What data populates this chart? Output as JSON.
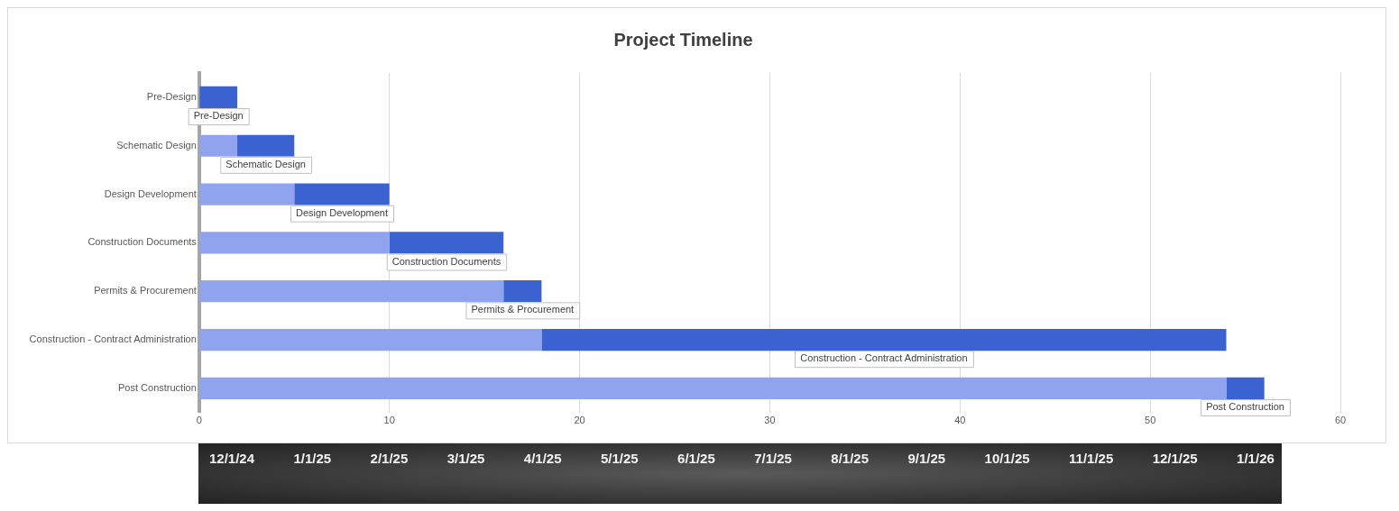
{
  "chart_data": {
    "type": "bar",
    "title": "Project Timeline",
    "orientation": "horizontal",
    "stacked": true,
    "categories": [
      "Pre-Design",
      "Schematic Design",
      "Design Development",
      "Construction Documents",
      "Permits & Procurement",
      "Construction - Contract Administration",
      "Post Construction"
    ],
    "series": [
      {
        "color": "#8fa3ee",
        "values": [
          0,
          2,
          5,
          10,
          16,
          18,
          54
        ]
      },
      {
        "color": "#3a62d0",
        "values": [
          2,
          3,
          5,
          6,
          2,
          36,
          2
        ],
        "value_labels": [
          "Pre-Design",
          "Schematic Design",
          "Design Development",
          "Construction Documents",
          "Permits & Procurement",
          "Construction - Contract Administration",
          "Post Construction"
        ]
      }
    ],
    "xlim": [
      0,
      60
    ],
    "xticks": [
      0,
      10,
      20,
      30,
      40,
      50,
      60
    ],
    "grid": "x",
    "legend": false,
    "annotations": [
      "12/1/24",
      "1/1/25",
      "2/1/25",
      "3/1/25",
      "4/1/25",
      "5/1/25",
      "6/1/25",
      "7/1/25",
      "8/1/25",
      "9/1/25",
      "10/1/25",
      "11/1/25",
      "12/1/25",
      "1/1/26"
    ]
  }
}
